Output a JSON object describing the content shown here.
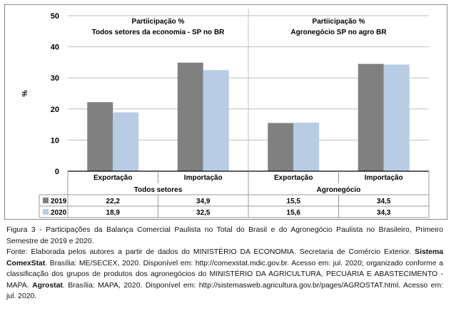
{
  "chart_data": {
    "type": "bar",
    "ylabel": "%",
    "ylim": [
      0,
      50
    ],
    "yticks": [
      0,
      10,
      20,
      30,
      40,
      50
    ],
    "categories": [
      "Exportação",
      "Importação",
      "Exportação",
      "Importação"
    ],
    "groups": [
      {
        "label": "Todos setores",
        "panel_title_1": "Partiicipação %",
        "panel_title_2": "Todos setores da economia - SP no BR"
      },
      {
        "label": "Agronegócio",
        "panel_title_1": "Partiicipação %",
        "panel_title_2": "Agronegócio SP  no agro BR"
      }
    ],
    "series": [
      {
        "name": "2019",
        "color": "#808080",
        "values": [
          22.2,
          34.9,
          15.5,
          34.5
        ],
        "labels": [
          "22,2",
          "34,9",
          "15,5",
          "34,5"
        ]
      },
      {
        "name": "2020",
        "color": "#b8cce4",
        "values": [
          18.9,
          32.5,
          15.6,
          34.3
        ],
        "labels": [
          "18,9",
          "32,5",
          "15,6",
          "34,3"
        ]
      }
    ],
    "grid": true,
    "legend": "data-table"
  },
  "caption": {
    "figure": "Figura 3 - Participações da Balança Comercial Paulista no Total do Brasil e do Agronegócio Paulista no Brasileiro, Primeiro Semestre de 2019 e 2020.",
    "source_1": "Fonte: Elaborada pelos autores a partir de dados do MINISTÉRIO DA ECONOMIA. Secretaria de Comércio Exterior. ",
    "source_bold_1": "Sistema ComexStat",
    "source_2": ". Brasília: ME/SECEX, 2020. Disponível em: http://comexstat.mdic.gov.br. Acesso em: jul. 2020; organizado conforme a classificação dos grupos de produtos dos agronegócios do MINISTÉRIO DA AGRICULTURA, PECUÁRIA E ABASTECIMENTO - MAPA. ",
    "source_bold_2": "Agrostat",
    "source_3": ". Brasília: MAPA, 2020. Disponível em: http://sistemasweb.agricultura.gov.br/pages/AGROSTAT.html. Acesso em: jul. 2020."
  }
}
